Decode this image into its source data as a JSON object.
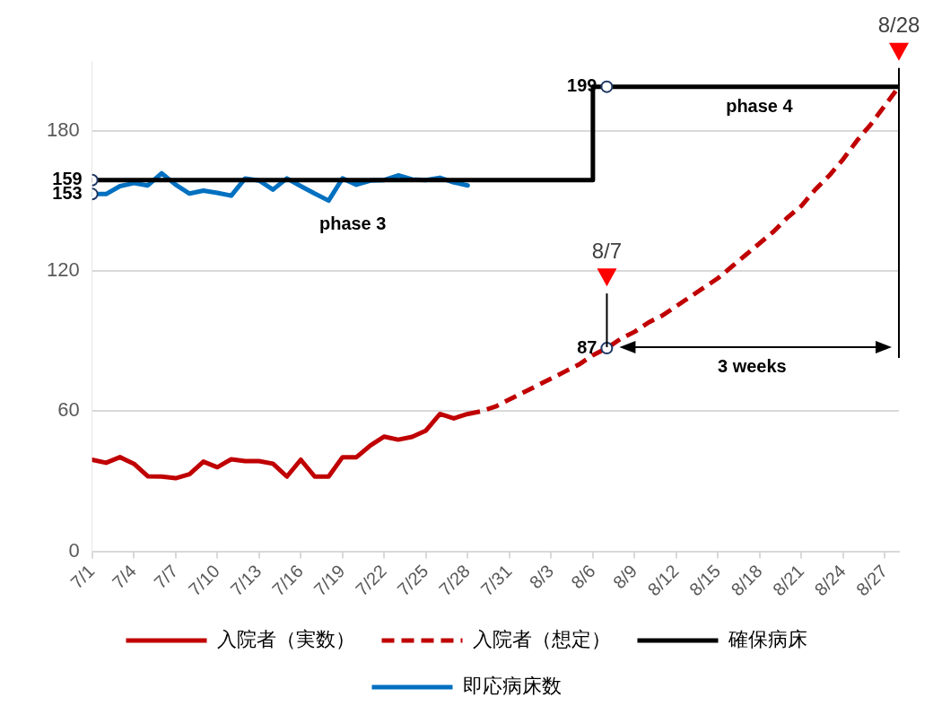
{
  "chart_data": {
    "type": "line",
    "x": [
      "--07-01",
      "--07-02",
      "--07-03",
      "--07-04",
      "--07-05",
      "--07-06",
      "--07-07",
      "--07-08",
      "--07-09",
      "--07-10",
      "--07-11",
      "--07-12",
      "--07-13",
      "--07-14",
      "--07-15",
      "--07-16",
      "--07-17",
      "--07-18",
      "--07-19",
      "--07-20",
      "--07-21",
      "--07-22",
      "--07-23",
      "--07-24",
      "--07-25",
      "--07-26",
      "--07-27",
      "--07-28",
      "--07-29",
      "--07-30",
      "--07-31",
      "--08-01",
      "--08-02",
      "--08-03",
      "--08-04",
      "--08-05",
      "--08-06",
      "--08-07",
      "--08-08",
      "--08-09",
      "--08-10",
      "--08-11",
      "--08-12",
      "--08-13",
      "--08-14",
      "--08-15",
      "--08-16",
      "--08-17",
      "--08-18",
      "--08-19",
      "--08-20",
      "--08-21",
      "--08-22",
      "--08-23",
      "--08-24",
      "--08-25",
      "--08-26",
      "--08-27",
      "--08-28"
    ],
    "series": [
      {
        "name": "入院者（実数）",
        "type": "line",
        "color": "#c00000",
        "line_style": "solid",
        "values": [
          39.2,
          37.9,
          40.3,
          37.5,
          32.1,
          32,
          31.3,
          33,
          38.4,
          36,
          39.4,
          38.6,
          38.6,
          37.5,
          32,
          39.2,
          32,
          32,
          40.3,
          40.3,
          45.3,
          49.1,
          47.8,
          49,
          51.7,
          58.8,
          56.9,
          58.8,
          null,
          null,
          null,
          null,
          null,
          null,
          null,
          null,
          null,
          null,
          null,
          null,
          null,
          null,
          null,
          null,
          null,
          null,
          null,
          null,
          null,
          null,
          null,
          null,
          null,
          null,
          null,
          null,
          null,
          null,
          null
        ]
      },
      {
        "name": "入院者（想定）",
        "type": "line",
        "color": "#c00000",
        "line_style": "dashed",
        "values": [
          null,
          null,
          null,
          null,
          null,
          null,
          null,
          null,
          null,
          null,
          null,
          null,
          null,
          null,
          null,
          null,
          null,
          null,
          null,
          null,
          null,
          null,
          null,
          null,
          null,
          null,
          null,
          58.8,
          60,
          62,
          65,
          68,
          71,
          74,
          77,
          80,
          84,
          87,
          91,
          94,
          98,
          101,
          105,
          109,
          113,
          117,
          122,
          127,
          132,
          137,
          143,
          148,
          155,
          161,
          168,
          176,
          183,
          191,
          199
        ],
        "value_labels": [
          null,
          null,
          null,
          null,
          null,
          null,
          null,
          null,
          null,
          null,
          null,
          null,
          null,
          null,
          null,
          null,
          null,
          null,
          null,
          null,
          null,
          null,
          null,
          null,
          null,
          null,
          null,
          null,
          null,
          null,
          null,
          null,
          null,
          null,
          null,
          null,
          null,
          "87",
          null,
          null,
          null,
          null,
          null,
          null,
          null,
          null,
          null,
          null,
          null,
          null,
          null,
          null,
          null,
          null,
          null,
          null,
          null,
          null,
          null
        ]
      },
      {
        "name": "確保病床",
        "type": "step",
        "color": "#000000",
        "line_style": "solid",
        "values": [
          159,
          159,
          159,
          159,
          159,
          159,
          159,
          159,
          159,
          159,
          159,
          159,
          159,
          159,
          159,
          159,
          159,
          159,
          159,
          159,
          159,
          159,
          159,
          159,
          159,
          159,
          159,
          159,
          159,
          159,
          159,
          159,
          159,
          159,
          159,
          159,
          159,
          199,
          199,
          199,
          199,
          199,
          199,
          199,
          199,
          199,
          199,
          199,
          199,
          199,
          199,
          199,
          199,
          199,
          199,
          199,
          199,
          199,
          199
        ],
        "value_labels": [
          "159",
          null,
          null,
          null,
          null,
          null,
          null,
          null,
          null,
          null,
          null,
          null,
          null,
          null,
          null,
          null,
          null,
          null,
          null,
          null,
          null,
          null,
          null,
          null,
          null,
          null,
          null,
          null,
          null,
          null,
          null,
          null,
          null,
          null,
          null,
          null,
          null,
          "199",
          null,
          null,
          null,
          null,
          null,
          null,
          null,
          null,
          null,
          null,
          null,
          null,
          null,
          null,
          null,
          null,
          null,
          null,
          null,
          null,
          null
        ]
      },
      {
        "name": "即応病床数",
        "type": "line",
        "color": "#0070c0",
        "line_style": "solid",
        "values": [
          153,
          153,
          156.4,
          157.7,
          156.7,
          161.9,
          157,
          153.2,
          154.5,
          153.5,
          152.3,
          159.7,
          158.8,
          154.9,
          159.7,
          156.4,
          153.2,
          150.2,
          159.7,
          157,
          158.8,
          159,
          161,
          159.3,
          159,
          160,
          158,
          156.7,
          null,
          null,
          null,
          null,
          null,
          null,
          null,
          null,
          null,
          null,
          null,
          null,
          null,
          null,
          null,
          null,
          null,
          null,
          null,
          null,
          null,
          null,
          null,
          null,
          null,
          null,
          null,
          null,
          null,
          null,
          null
        ],
        "value_labels": [
          "153",
          null,
          null,
          null,
          null,
          null,
          null,
          null,
          null,
          null,
          null,
          null,
          null,
          null,
          null,
          null,
          null,
          null,
          null,
          null,
          null,
          null,
          null,
          null,
          null,
          null,
          null,
          null,
          null,
          null,
          null,
          null,
          null,
          null,
          null,
          null,
          null,
          null,
          null,
          null,
          null,
          null,
          null,
          null,
          null,
          null,
          null,
          null,
          null,
          null,
          null,
          null,
          null,
          null,
          null,
          null,
          null,
          null,
          null
        ]
      }
    ],
    "xlim": [
      "--07-01",
      "--08-28"
    ],
    "xticks": [
      {
        "value": "--07-01",
        "label": "7/1"
      },
      {
        "value": "--07-04",
        "label": "7/4"
      },
      {
        "value": "--07-07",
        "label": "7/7"
      },
      {
        "value": "--07-10",
        "label": "7/10"
      },
      {
        "value": "--07-13",
        "label": "7/13"
      },
      {
        "value": "--07-16",
        "label": "7/16"
      },
      {
        "value": "--07-19",
        "label": "7/19"
      },
      {
        "value": "--07-22",
        "label": "7/22"
      },
      {
        "value": "--07-25",
        "label": "7/25"
      },
      {
        "value": "--07-28",
        "label": "7/28"
      },
      {
        "value": "--07-31",
        "label": "7/31"
      },
      {
        "value": "--08-03",
        "label": "8/3"
      },
      {
        "value": "--08-06",
        "label": "8/6"
      },
      {
        "value": "--08-09",
        "label": "8/9"
      },
      {
        "value": "--08-12",
        "label": "8/12"
      },
      {
        "value": "--08-15",
        "label": "8/15"
      },
      {
        "value": "--08-18",
        "label": "8/18"
      },
      {
        "value": "--08-21",
        "label": "8/21"
      },
      {
        "value": "--08-24",
        "label": "8/24"
      },
      {
        "value": "--08-27",
        "label": "8/27"
      }
    ],
    "ylim": [
      0,
      210
    ],
    "yticks": [
      0,
      60,
      120,
      180
    ],
    "grid": "y",
    "legend": "bottom",
    "annotations": [
      "8/7",
      "8/28",
      "3 weeks",
      "phase 3",
      "phase 4"
    ]
  }
}
